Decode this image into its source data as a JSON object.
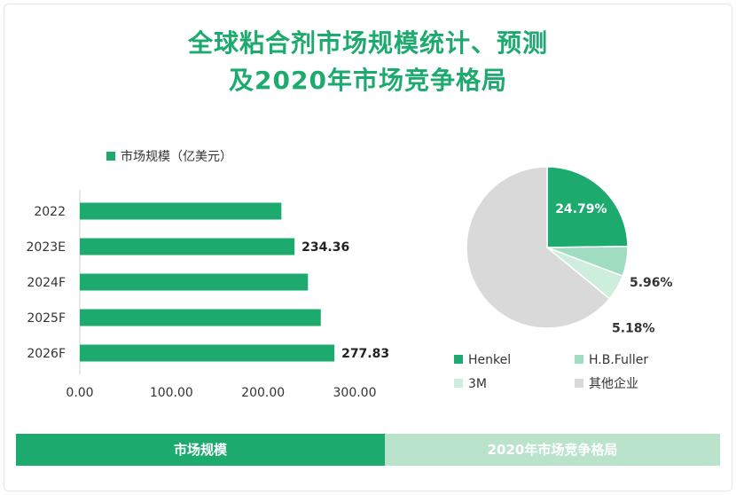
{
  "title": {
    "line1": "全球粘合剂市场规模统计、预测",
    "line2": "及2020年市场竞争格局"
  },
  "colors": {
    "brand_green": "#1daa6e",
    "light_green": "#9fdcc0",
    "lighter_green": "#cdeedd",
    "grey": "#d9d9d9",
    "tab_right": "#b9e3cb"
  },
  "chart_data": [
    {
      "type": "bar",
      "orientation": "horizontal",
      "legend": {
        "position": "top-left"
      },
      "categories": [
        "2022",
        "2023E",
        "2024F",
        "2025F",
        "2026F"
      ],
      "series": [
        {
          "name": "市场规模（亿美元）",
          "values": [
            220,
            234.36,
            249,
            263,
            277.83
          ]
        }
      ],
      "data_labels": [
        "",
        "234.36",
        "",
        "",
        "277.83"
      ],
      "xlim": [
        0,
        300
      ],
      "xticks": [
        "0.00",
        "100.00",
        "200.00",
        "300.00"
      ],
      "grid": false
    },
    {
      "type": "pie",
      "labels": [
        "Henkel",
        "H.B.Fuller",
        "3M",
        "其他企业"
      ],
      "values": [
        24.79,
        5.96,
        5.18,
        64.07
      ],
      "data_labels": [
        "24.79%",
        "5.96%",
        "5.18%",
        ""
      ],
      "legend": {
        "position": "bottom"
      }
    }
  ],
  "tabs": {
    "left": "市场规模",
    "right": "2020年市场竞争格局"
  }
}
